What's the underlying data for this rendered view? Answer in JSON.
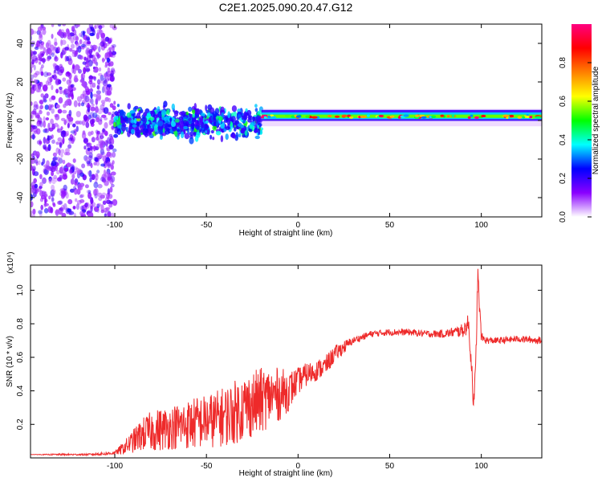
{
  "title": "C2E1.2025.090.20.47.G12",
  "colors": {
    "snr_line": "#ee2a2a",
    "axis": "#000000"
  },
  "chart_data": [
    {
      "type": "heatmap",
      "xlabel": "Height of straight line (km)",
      "ylabel": "Frequency (Hz)",
      "xlim": [
        -146,
        133
      ],
      "ylim": [
        -50,
        50
      ],
      "xticks": [
        -100,
        -50,
        0,
        50,
        100
      ],
      "xtick_labels": [
        "-100",
        "-50",
        "0",
        "50",
        "100"
      ],
      "yticks": [
        -40,
        -20,
        0,
        20,
        40
      ],
      "ytick_labels": [
        "-40",
        "-20",
        "0",
        "20",
        "40"
      ],
      "colorbar": {
        "label": "Normalized spectral amplitude",
        "range": [
          0,
          1
        ],
        "ticks": [
          0,
          0.2,
          0.4,
          0.6,
          0.8
        ],
        "tick_labels": [
          "0.0",
          "0.2",
          "0.4",
          "0.6",
          "0.8"
        ],
        "colormap": [
          "#ffffff",
          "#8a00ff",
          "#0000ff",
          "#00ffff",
          "#00ff00",
          "#ffff00",
          "#ff8000",
          "#ff0000",
          "#ff0080"
        ]
      },
      "regions": [
        {
          "x": [
            -146,
            -100
          ],
          "description": "noise",
          "freq_range": [
            -50,
            50
          ],
          "amplitude": [
            0.0,
            0.2
          ]
        },
        {
          "x": [
            -100,
            -20
          ],
          "description": "developing signal",
          "freq_range": [
            -12,
            10
          ],
          "amplitude": [
            0.1,
            0.5
          ]
        },
        {
          "x": [
            -20,
            133
          ],
          "description": "stable carrier",
          "freq_center": 2,
          "freq_range": [
            -3,
            6
          ],
          "amplitude": [
            0.3,
            1.0
          ]
        }
      ]
    },
    {
      "type": "line",
      "xlabel": "Height of straight line (km)",
      "ylabel": "SNR (10 * v/v)",
      "y_multiplier": "(x10⁴)",
      "xlim": [
        -146,
        133
      ],
      "ylim": [
        0,
        1.15
      ],
      "xticks": [
        -100,
        -50,
        0,
        50,
        100
      ],
      "xtick_labels": [
        "-100",
        "-50",
        "0",
        "50",
        "100"
      ],
      "yticks": [
        0.2,
        0.4,
        0.6,
        0.8,
        1.0
      ],
      "ytick_labels": [
        "0.2",
        "0.4",
        "0.6",
        "0.8",
        "1.0"
      ],
      "series": [
        {
          "color": "#ee2a2a",
          "x": [
            -146,
            -130,
            -115,
            -105,
            -100,
            -95,
            -90,
            -85,
            -80,
            -75,
            -70,
            -65,
            -60,
            -55,
            -50,
            -45,
            -40,
            -35,
            -30,
            -25,
            -20,
            -15,
            -10,
            -5,
            0,
            5,
            10,
            15,
            20,
            25,
            30,
            35,
            40,
            50,
            60,
            70,
            80,
            85,
            90,
            93,
            95,
            96,
            97,
            98,
            99,
            100,
            103,
            110,
            120,
            133
          ],
          "y": [
            0.02,
            0.02,
            0.02,
            0.025,
            0.03,
            0.06,
            0.1,
            0.14,
            0.16,
            0.17,
            0.18,
            0.19,
            0.2,
            0.21,
            0.22,
            0.23,
            0.25,
            0.27,
            0.3,
            0.32,
            0.34,
            0.37,
            0.38,
            0.4,
            0.46,
            0.5,
            0.52,
            0.55,
            0.62,
            0.66,
            0.7,
            0.72,
            0.74,
            0.75,
            0.75,
            0.74,
            0.74,
            0.75,
            0.76,
            0.8,
            0.5,
            0.3,
            0.55,
            1.1,
            0.9,
            0.72,
            0.7,
            0.7,
            0.71,
            0.7
          ],
          "noise": [
            0.0,
            0.005,
            0.005,
            0.01,
            0.01,
            0.04,
            0.07,
            0.1,
            0.12,
            0.13,
            0.13,
            0.14,
            0.15,
            0.16,
            0.16,
            0.17,
            0.18,
            0.19,
            0.2,
            0.2,
            0.2,
            0.17,
            0.16,
            0.12,
            0.08,
            0.07,
            0.06,
            0.06,
            0.05,
            0.04,
            0.02,
            0.02,
            0.02,
            0.02,
            0.02,
            0.02,
            0.025,
            0.03,
            0.04,
            0.06,
            0.08,
            0.08,
            0.08,
            0.08,
            0.06,
            0.03,
            0.02,
            0.02,
            0.02,
            0.02
          ]
        }
      ]
    }
  ]
}
